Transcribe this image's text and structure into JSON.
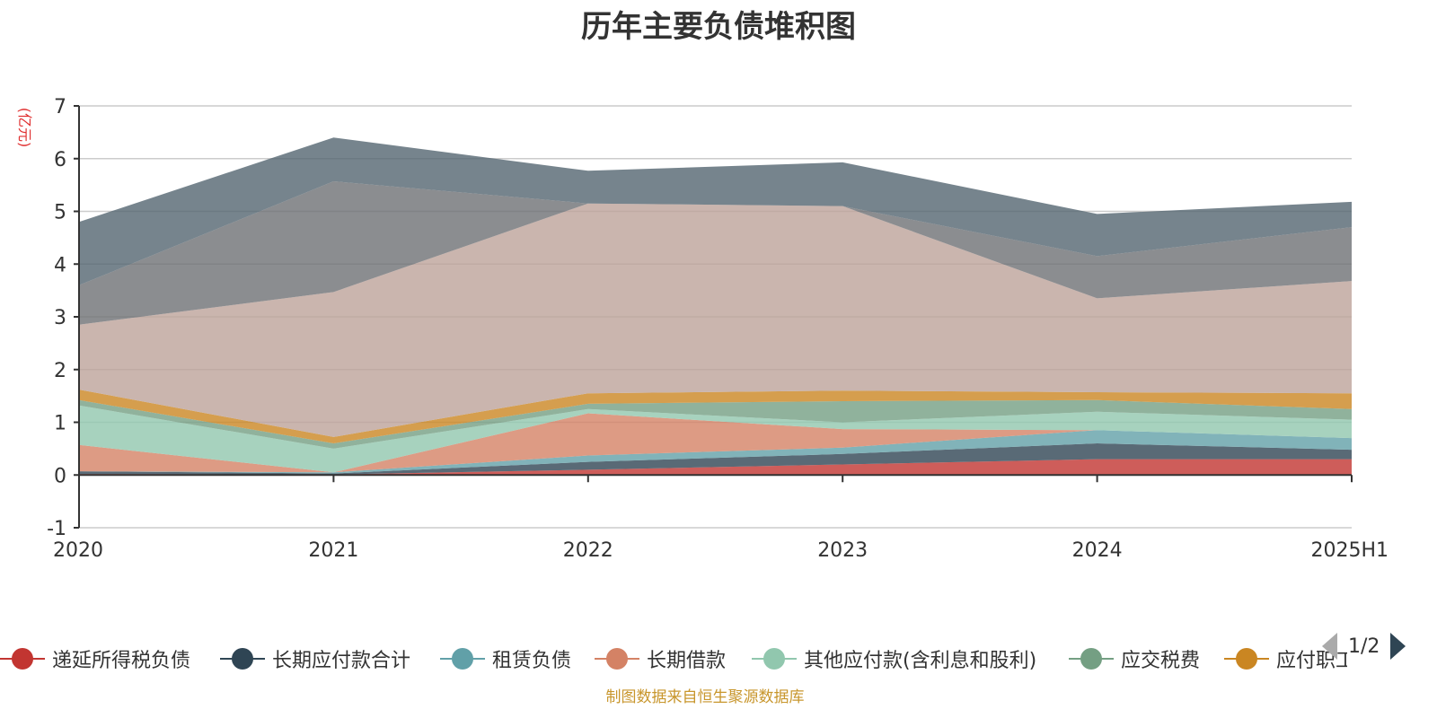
{
  "source_note": "制图数据来自恒生聚源数据库",
  "pager": {
    "indicator": "1/2"
  },
  "chart_data": {
    "type": "area",
    "stacked": true,
    "title": "历年主要负债堆积图",
    "unit": "(亿元)",
    "categories": [
      "2020",
      "2021",
      "2022",
      "2023",
      "2024",
      "2025H1"
    ],
    "y_ticks": [
      "-1",
      "0",
      "1",
      "2",
      "3",
      "4",
      "5",
      "6",
      "7"
    ],
    "ylim": [
      -1,
      7
    ],
    "grid": true,
    "legend_position": "bottom",
    "series": [
      {
        "name": "递延所得税负债",
        "color": "#c23531",
        "values": [
          0.02,
          0.01,
          0.1,
          0.2,
          0.3,
          0.3
        ]
      },
      {
        "name": "长期应付款合计",
        "color": "#2f4554",
        "values": [
          0.05,
          0.02,
          0.15,
          0.2,
          0.3,
          0.18
        ]
      },
      {
        "name": "租赁负债",
        "color": "#61a0a8",
        "values": [
          0.0,
          0.02,
          0.12,
          0.12,
          0.25,
          0.22
        ]
      },
      {
        "name": "长期借款",
        "color": "#d48265",
        "values": [
          0.5,
          0.0,
          0.8,
          0.35,
          0.0,
          0.0
        ]
      },
      {
        "name": "其他应付款(含利息和股利)",
        "color": "#91c7ae",
        "values": [
          0.75,
          0.45,
          0.08,
          0.13,
          0.35,
          0.35
        ]
      },
      {
        "name": "应交税费",
        "color": "#749f83",
        "values": [
          0.1,
          0.1,
          0.1,
          0.4,
          0.22,
          0.2
        ]
      },
      {
        "name": "应付职工薪酬",
        "color": "#ca8622",
        "values": [
          0.2,
          0.12,
          0.2,
          0.2,
          0.15,
          0.3
        ]
      },
      {
        "name": "",
        "color": "#bda29a",
        "values": [
          1.23,
          2.75,
          3.6,
          3.5,
          1.78,
          2.13
        ]
      },
      {
        "name": "",
        "color": "#6e7074",
        "values": [
          0.75,
          2.1,
          0.0,
          0.0,
          0.8,
          1.02
        ]
      },
      {
        "name": "",
        "color": "#546570",
        "values": [
          1.2,
          0.83,
          0.62,
          0.83,
          0.8,
          0.48
        ]
      }
    ]
  }
}
